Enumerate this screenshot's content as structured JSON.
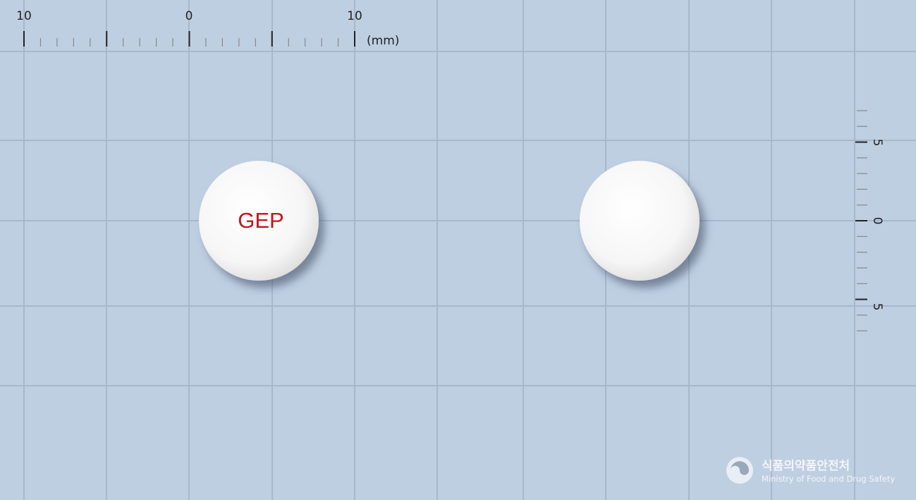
{
  "ruler_top": {
    "labels": [
      "10",
      "0",
      "10"
    ],
    "unit": "(mm)"
  },
  "ruler_right": {
    "labels": [
      "5",
      "0",
      "5"
    ]
  },
  "tablets": [
    {
      "imprint": "GEP"
    }
  ],
  "logo": {
    "name_ko": "식품의약품안전처",
    "name_en": "Ministry of Food and Drug Safety"
  }
}
